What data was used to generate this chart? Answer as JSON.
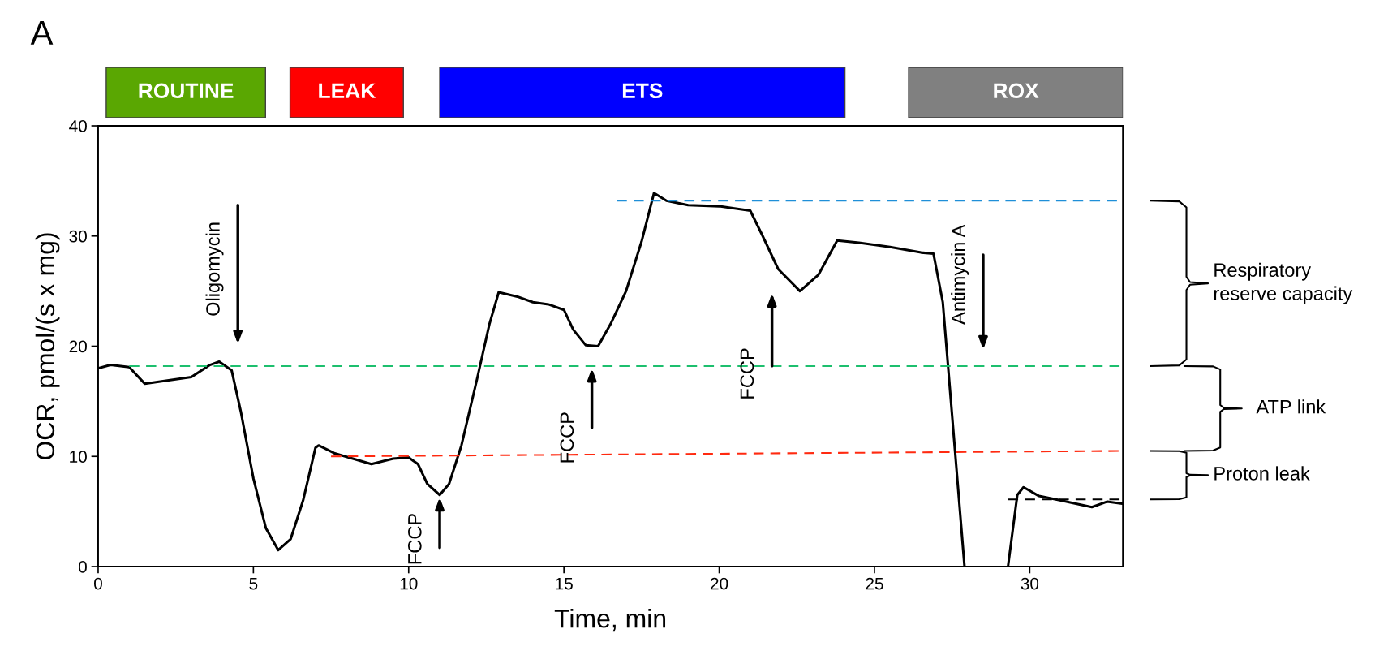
{
  "chart_data": {
    "type": "line",
    "title": "A",
    "xlabel": "Time, min",
    "ylabel": "OCR, pmol/(s x mg)",
    "xlim": [
      0,
      33
    ],
    "xticks": [
      0,
      5,
      10,
      15,
      20,
      25,
      30
    ],
    "ylim": [
      0,
      40
    ],
    "yticks": [
      0,
      10,
      20,
      30,
      40
    ],
    "grid": false,
    "legend": false,
    "marker": "none",
    "series": [
      {
        "color": "#000000",
        "line_style": "solid",
        "x": [
          0,
          0.4,
          1.0,
          1.5,
          2.0,
          3.0,
          3.6,
          3.9,
          4.3,
          4.6,
          5.0,
          5.4,
          5.8,
          6.2,
          6.6,
          7.0,
          7.1,
          7.6,
          8.2,
          8.8,
          9.5,
          10.0,
          10.3,
          10.6,
          11.0,
          11.3,
          11.7,
          12.2,
          12.6,
          12.9,
          13.5,
          14.0,
          14.5,
          15.0,
          15.3,
          15.7,
          16.1,
          16.5,
          17.0,
          17.5,
          17.9,
          18.3,
          19.0,
          20.0,
          21.0,
          21.4,
          21.9,
          22.6,
          23.2,
          23.8,
          24.5,
          25.5,
          26.5,
          26.9,
          27.2,
          27.9,
          28.6,
          29.3,
          29.6,
          29.8,
          30.3,
          31.0,
          32.0,
          32.5,
          33.0
        ],
        "values": [
          18.0,
          18.3,
          18.1,
          16.6,
          16.8,
          17.2,
          18.3,
          18.6,
          17.8,
          14.0,
          8.0,
          3.5,
          1.5,
          2.5,
          6.0,
          10.8,
          11.0,
          10.3,
          9.8,
          9.3,
          9.8,
          9.9,
          9.3,
          7.5,
          6.5,
          7.5,
          11.0,
          17.0,
          22.0,
          24.9,
          24.5,
          24.0,
          23.8,
          23.3,
          21.5,
          20.1,
          20.0,
          22.0,
          25.0,
          29.5,
          33.9,
          33.2,
          32.8,
          32.7,
          32.3,
          30.0,
          27.0,
          25.0,
          26.5,
          29.6,
          29.4,
          29.0,
          28.5,
          28.4,
          24.0,
          0.0,
          null,
          0.0,
          6.5,
          7.2,
          6.4,
          6.0,
          5.4,
          5.9,
          5.7
        ]
      },
      {
        "color": "#1f8fd8",
        "line_style": "dashed",
        "x": [
          16.7,
          33
        ],
        "values": [
          33.2,
          33.2
        ]
      },
      {
        "color": "#1dbf6e",
        "line_style": "dashed",
        "x": [
          1.0,
          33
        ],
        "values": [
          18.2,
          18.2
        ]
      },
      {
        "color": "#ff2a10",
        "line_style": "dashed",
        "x": [
          7.5,
          33
        ],
        "values": [
          10.0,
          10.5
        ]
      },
      {
        "color": "#000000",
        "line_style": "dashed",
        "x": [
          29.3,
          33
        ],
        "values": [
          6.1,
          6.1
        ]
      }
    ],
    "annotations": [
      "ROUTINE",
      "LEAK",
      "ETS",
      "ROX",
      "Oligomycin",
      {
        "text": "FCCP",
        "x": 11.0,
        "y": 6.5
      },
      {
        "text": "FCCP",
        "x": 15.9,
        "y": 18.2
      },
      "FCCP",
      "Antimycin A",
      "Respiratory\nreserve capacity",
      "ATP link",
      "Proton leak"
    ]
  }
}
